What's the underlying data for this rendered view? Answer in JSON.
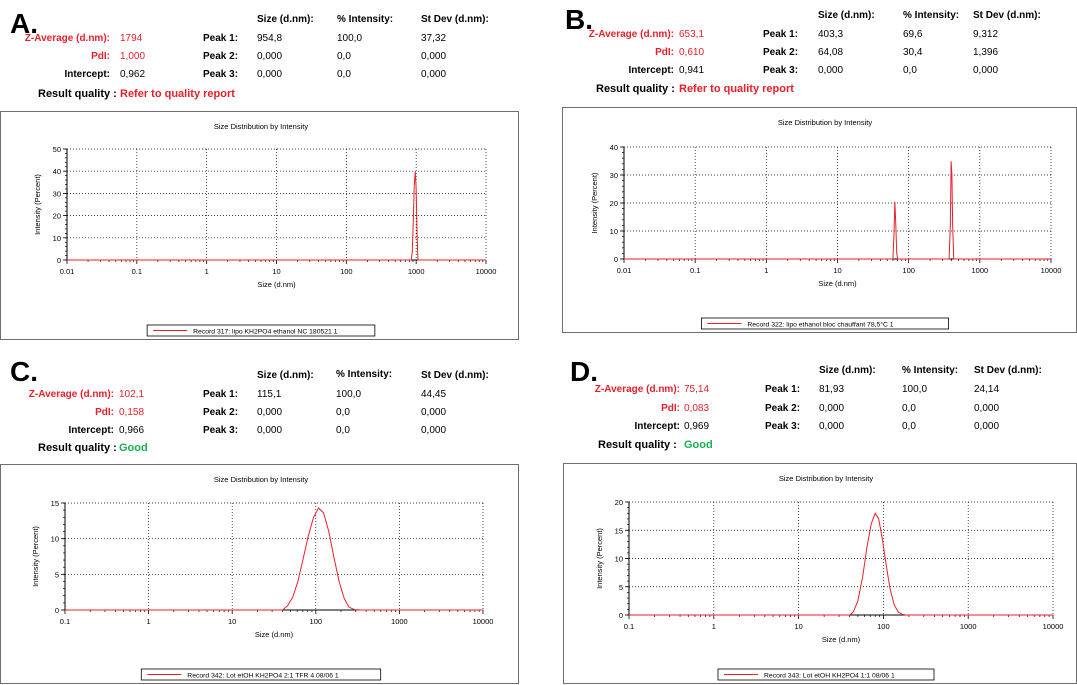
{
  "colors": {
    "good": "#18b050",
    "bad": "#e8202a",
    "line": "#e8202a"
  },
  "header": {
    "size_col": "Size (d.nm):",
    "int_col": "% Intensity:",
    "sd_col": "St Dev (d.nm):",
    "zavg_label": "Z-Average (d.nm):",
    "pdi_label": "PdI:",
    "intercept_label": "Intercept:",
    "rq_label": "Result quality :",
    "peak_labels": [
      "Peak 1:",
      "Peak 2:",
      "Peak 3:"
    ]
  },
  "panels": [
    {
      "letter": "A.",
      "zavg": "1794",
      "pdi": "1,000",
      "intercept": "0,962",
      "quality": "Refer to quality report",
      "quality_status": "bad",
      "peaks": [
        {
          "size": "954,8",
          "intensity": "100,0",
          "sd": "37,32"
        },
        {
          "size": "0,000",
          "intensity": "0,0",
          "sd": "0,000"
        },
        {
          "size": "0,000",
          "intensity": "0,0",
          "sd": "0,000"
        }
      ]
    },
    {
      "letter": "B.",
      "zavg": "653,1",
      "pdi": "0,610",
      "intercept": "0,941",
      "quality": "Refer to quality report",
      "quality_status": "bad",
      "peaks": [
        {
          "size": "403,3",
          "intensity": "69,6",
          "sd": "9,312"
        },
        {
          "size": "64,08",
          "intensity": "30,4",
          "sd": "1,396"
        },
        {
          "size": "0,000",
          "intensity": "0,0",
          "sd": "0,000"
        }
      ]
    },
    {
      "letter": "C.",
      "zavg": "102,1",
      "pdi": "0,158",
      "intercept": "0,966",
      "quality": "Good",
      "quality_status": "good",
      "peaks": [
        {
          "size": "115,1",
          "intensity": "100,0",
          "sd": "44,45"
        },
        {
          "size": "0,000",
          "intensity": "0,0",
          "sd": "0,000"
        },
        {
          "size": "0,000",
          "intensity": "0,0",
          "sd": "0,000"
        }
      ]
    },
    {
      "letter": "D.",
      "zavg": "75,14",
      "pdi": "0,083",
      "intercept": "0,969",
      "quality": "Good",
      "quality_status": "good",
      "peaks": [
        {
          "size": "81,93",
          "intensity": "100,0",
          "sd": "24,14"
        },
        {
          "size": "0,000",
          "intensity": "0,0",
          "sd": "0,000"
        },
        {
          "size": "0,000",
          "intensity": "0,0",
          "sd": "0,000"
        }
      ]
    }
  ],
  "chart_data": [
    {
      "type": "line",
      "title": "Size Distribution by Intensity",
      "xlabel": "Size (d.nm)",
      "ylabel": "Intensity (Percent)",
      "xscale": "log",
      "xlim": [
        0.01,
        10000
      ],
      "ylim": [
        0,
        50
      ],
      "x_ticks": [
        "0.01",
        "0.1",
        "1",
        "10",
        "100",
        "1000",
        "10000"
      ],
      "y_ticks": [
        "0",
        "10",
        "20",
        "30",
        "40",
        "50"
      ],
      "grid": true,
      "series": [
        {
          "name": "Record 317: lipo KH2PO4 ethanol NC 180521 1",
          "x": [
            0.01,
            850,
            880,
            910,
            940,
            970,
            1000,
            1030,
            1060,
            10000
          ],
          "y": [
            0,
            0,
            4,
            18,
            34,
            39.6,
            32,
            12,
            0,
            0
          ]
        }
      ]
    },
    {
      "type": "line",
      "title": "Size Distribution by Intensity",
      "xlabel": "Size (d.nm)",
      "ylabel": "Intensity (Percent)",
      "xscale": "log",
      "xlim": [
        0.01,
        10000
      ],
      "ylim": [
        0,
        40
      ],
      "x_ticks": [
        "0.01",
        "0.1",
        "1",
        "10",
        "100",
        "1000",
        "10000"
      ],
      "y_ticks": [
        "0",
        "10",
        "20",
        "30",
        "40"
      ],
      "grid": true,
      "series": [
        {
          "name": "Record 322: lipo ethanol bloc chauffant 78,5°C 1",
          "x": [
            0.01,
            60,
            62,
            64,
            66,
            68,
            70,
            370,
            385,
            395,
            405,
            415,
            430,
            10000
          ],
          "y": [
            0,
            0,
            8,
            20.4,
            12,
            2,
            0,
            0,
            12,
            34.8,
            30,
            12,
            0,
            0
          ]
        }
      ]
    },
    {
      "type": "line",
      "title": "Size Distribution by Intensity",
      "xlabel": "Size (d.nm)",
      "ylabel": "Intensity (Percent)",
      "xscale": "log",
      "xlim": [
        0.1,
        10000
      ],
      "ylim": [
        0,
        15
      ],
      "x_ticks": [
        "0.1",
        "1",
        "10",
        "100",
        "1000",
        "10000"
      ],
      "y_ticks": [
        "0",
        "5",
        "10",
        "15"
      ],
      "grid": true,
      "series": [
        {
          "name": "Record 342: Lot etOH KH2PO4 2:1 TFR 4 08/06  1",
          "x": [
            0.1,
            40,
            46,
            53,
            61,
            70,
            81,
            94,
            108,
            124,
            143,
            164,
            190,
            219,
            250,
            290,
            340,
            10000
          ],
          "y": [
            0,
            0,
            0.6,
            1.8,
            4.0,
            7.0,
            10.3,
            13.0,
            14.3,
            13.6,
            11.0,
            7.5,
            4.0,
            1.6,
            0.4,
            0.05,
            0,
            0
          ]
        }
      ]
    },
    {
      "type": "line",
      "title": "Size Distribution by Intensity",
      "xlabel": "Size (d.nm)",
      "ylabel": "Intensity (Percent)",
      "xscale": "log",
      "xlim": [
        0.1,
        10000
      ],
      "ylim": [
        0,
        20
      ],
      "x_ticks": [
        "0.1",
        "1",
        "10",
        "100",
        "1000",
        "10000"
      ],
      "y_ticks": [
        "0",
        "5",
        "10",
        "15",
        "20"
      ],
      "grid": true,
      "series": [
        {
          "name": "Record 343: Lot etOH KH2PO4 1:1 08/06  1",
          "x": [
            0.1,
            40,
            44,
            50,
            57,
            64,
            72,
            80,
            88,
            97,
            108,
            120,
            134,
            150,
            168,
            185,
            10000
          ],
          "y": [
            0,
            0,
            0.5,
            2.5,
            6.8,
            12.0,
            16.2,
            18.0,
            17.0,
            13.5,
            8.8,
            4.6,
            1.8,
            0.5,
            0.1,
            0,
            0
          ]
        }
      ]
    }
  ]
}
